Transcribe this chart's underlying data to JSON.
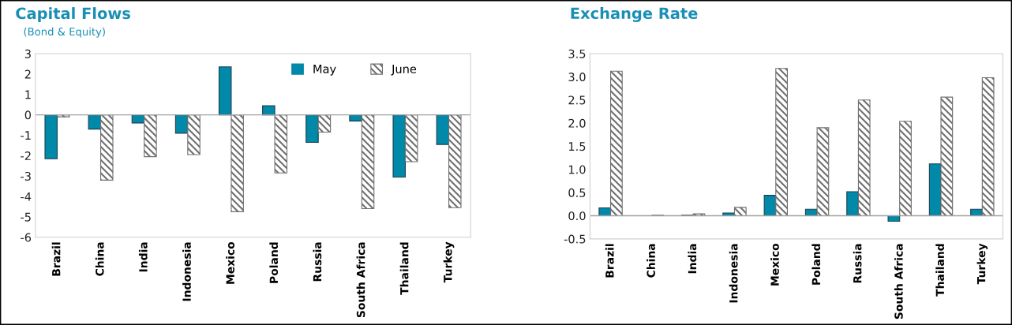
{
  "chart_data": [
    {
      "type": "bar",
      "title": "Capital Flows",
      "subtitle": "(Bond & Equity)",
      "categories": [
        "Brazil",
        "China",
        "India",
        "Indonesia",
        "Mexico",
        "Poland",
        "Russia",
        "South Africa",
        "Thailand",
        "Turkey"
      ],
      "series": [
        {
          "name": "May",
          "color": "#0089a8",
          "values": [
            -2.15,
            -0.7,
            -0.4,
            -0.9,
            2.35,
            0.45,
            -1.35,
            -0.3,
            -3.05,
            -1.45
          ]
        },
        {
          "name": "June",
          "color": "#707070",
          "values": [
            -0.1,
            -3.2,
            -2.05,
            -1.95,
            -4.75,
            -2.85,
            -0.85,
            -4.6,
            -2.3,
            -4.55
          ]
        }
      ],
      "ylim": [
        -6,
        3
      ],
      "yticks": [
        -6,
        -5,
        -4,
        -3,
        -2,
        -1,
        0,
        1,
        2,
        3
      ],
      "legend": "top right"
    },
    {
      "type": "bar",
      "title": "Exchange Rate",
      "categories": [
        "Brazil",
        "China",
        "India",
        "Indonesia",
        "Mexico",
        "Poland",
        "Russia",
        "South Africa",
        "Thailand",
        "Turkey"
      ],
      "series": [
        {
          "color": "#0089a8",
          "values": [
            0.17,
            null,
            0.01,
            0.06,
            0.44,
            0.14,
            0.52,
            -0.12,
            1.12,
            0.14
          ]
        },
        {
          "color": "#707070",
          "values": [
            3.12,
            0.01,
            0.04,
            0.18,
            3.18,
            1.9,
            2.5,
            2.04,
            2.56,
            2.98
          ]
        }
      ],
      "ylim": [
        -0.5,
        3.5
      ],
      "yticks": [
        {
          "value": -0.5,
          "label": "-0.5"
        },
        {
          "value": 0,
          "label": "0.0"
        },
        {
          "value": 0.5,
          "label": "0.5"
        },
        {
          "value": 1,
          "label": "1.0"
        },
        {
          "value": 1.5,
          "label": "1.5"
        },
        {
          "value": 2,
          "label": "2.0"
        },
        {
          "value": 2.5,
          "label": "2.5"
        },
        {
          "value": 3,
          "label": "3.0"
        },
        {
          "value": 3.5,
          "label": "3.5"
        }
      ]
    }
  ]
}
